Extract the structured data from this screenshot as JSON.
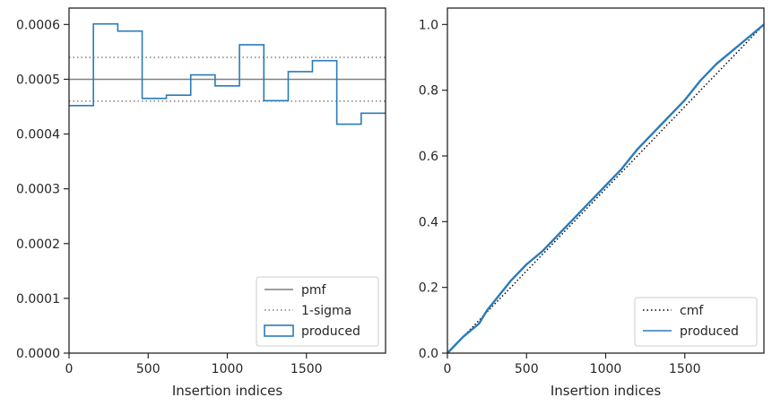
{
  "chart_data": [
    {
      "type": "step",
      "title": "",
      "xlabel": "Insertion indices",
      "ylabel": "",
      "xlim": [
        0,
        2000
      ],
      "ylim": [
        0,
        0.00063
      ],
      "xticks": [
        "0",
        "500",
        "1000",
        "1500"
      ],
      "yticks": [
        "0.0000",
        "0.0001",
        "0.0002",
        "0.0003",
        "0.0004",
        "0.0005",
        "0.0006"
      ],
      "grid": false,
      "legend_position": "lower-right",
      "bin_edges": [
        0,
        154,
        308,
        462,
        615,
        769,
        923,
        1077,
        1231,
        1385,
        1538,
        1692,
        1846,
        2000
      ],
      "series": [
        {
          "name": "pmf",
          "style": "solid",
          "color": "#808080",
          "value": 0.0005
        },
        {
          "name": "1-sigma",
          "style": "dotted",
          "color": "#808080",
          "values": [
            0.00046,
            0.00054
          ]
        },
        {
          "name": "produced",
          "style": "step",
          "color": "#2b7bb9",
          "values": [
            0.000452,
            0.000601,
            0.000588,
            0.000465,
            0.000471,
            0.000508,
            0.000488,
            0.000563,
            0.000461,
            0.000514,
            0.000534,
            0.000418,
            0.000438
          ]
        }
      ]
    },
    {
      "type": "line",
      "title": "",
      "xlabel": "Insertion indices",
      "ylabel": "",
      "xlim": [
        0,
        2000
      ],
      "ylim": [
        0,
        1.05
      ],
      "xticks": [
        "0",
        "500",
        "1000",
        "1500"
      ],
      "yticks": [
        "0.0",
        "0.2",
        "0.4",
        "0.6",
        "0.8",
        "1.0"
      ],
      "grid": false,
      "legend_position": "lower-right",
      "series": [
        {
          "name": "cmf",
          "style": "dotted",
          "color": "#000000",
          "x": [
            0,
            2000
          ],
          "y": [
            0,
            1.0
          ]
        },
        {
          "name": "produced",
          "style": "solid",
          "color": "#2b7bb9",
          "x": [
            0,
            60,
            100,
            150,
            200,
            250,
            300,
            400,
            500,
            600,
            700,
            800,
            900,
            1000,
            1100,
            1200,
            1300,
            1400,
            1500,
            1600,
            1700,
            1800,
            1900,
            2000
          ],
          "y": [
            0,
            0.03,
            0.05,
            0.07,
            0.09,
            0.13,
            0.16,
            0.22,
            0.27,
            0.31,
            0.36,
            0.41,
            0.46,
            0.51,
            0.56,
            0.62,
            0.67,
            0.72,
            0.77,
            0.83,
            0.88,
            0.92,
            0.96,
            1.0
          ]
        }
      ]
    }
  ]
}
